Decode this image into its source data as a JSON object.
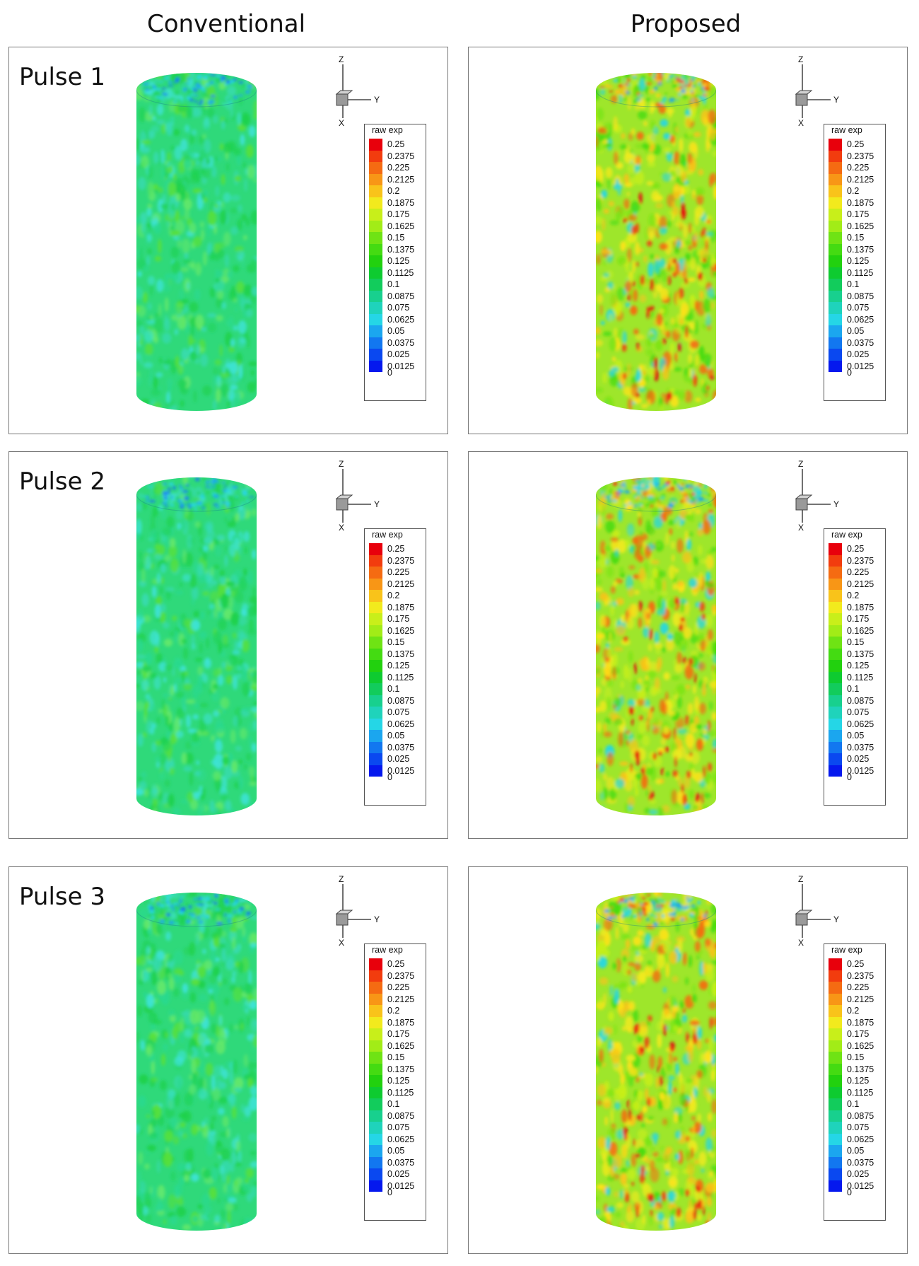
{
  "columns": [
    {
      "title": "Conventional",
      "scheme": "conventional"
    },
    {
      "title": "Proposed",
      "scheme": "proposed"
    }
  ],
  "rows": [
    {
      "label": "Pulse 1"
    },
    {
      "label": "Pulse 2"
    },
    {
      "label": "Pulse 3"
    }
  ],
  "axes": {
    "z": "Z",
    "y": "Y",
    "x": "X"
  },
  "legend": {
    "title": "raw exp",
    "levels": [
      "0.25",
      "0.2375",
      "0.225",
      "0.2125",
      "0.2",
      "0.1875",
      "0.175",
      "0.1625",
      "0.15",
      "0.1375",
      "0.125",
      "0.1125",
      "0.1",
      "0.0875",
      "0.075",
      "0.0625",
      "0.05",
      "0.0375",
      "0.025",
      "0.0125"
    ],
    "zero": "0",
    "colors": [
      "#e8000c",
      "#f23c0e",
      "#f56b12",
      "#f89616",
      "#f9c31a",
      "#f2ea1d",
      "#c8ef1a",
      "#a2ec17",
      "#6fe314",
      "#44db12",
      "#22d10e",
      "#0ecb30",
      "#12cc5c",
      "#18d08e",
      "#1fd3bb",
      "#25d6e6",
      "#1ba6ef",
      "#1277f0",
      "#0a48f0",
      "#0518ee"
    ]
  }
}
